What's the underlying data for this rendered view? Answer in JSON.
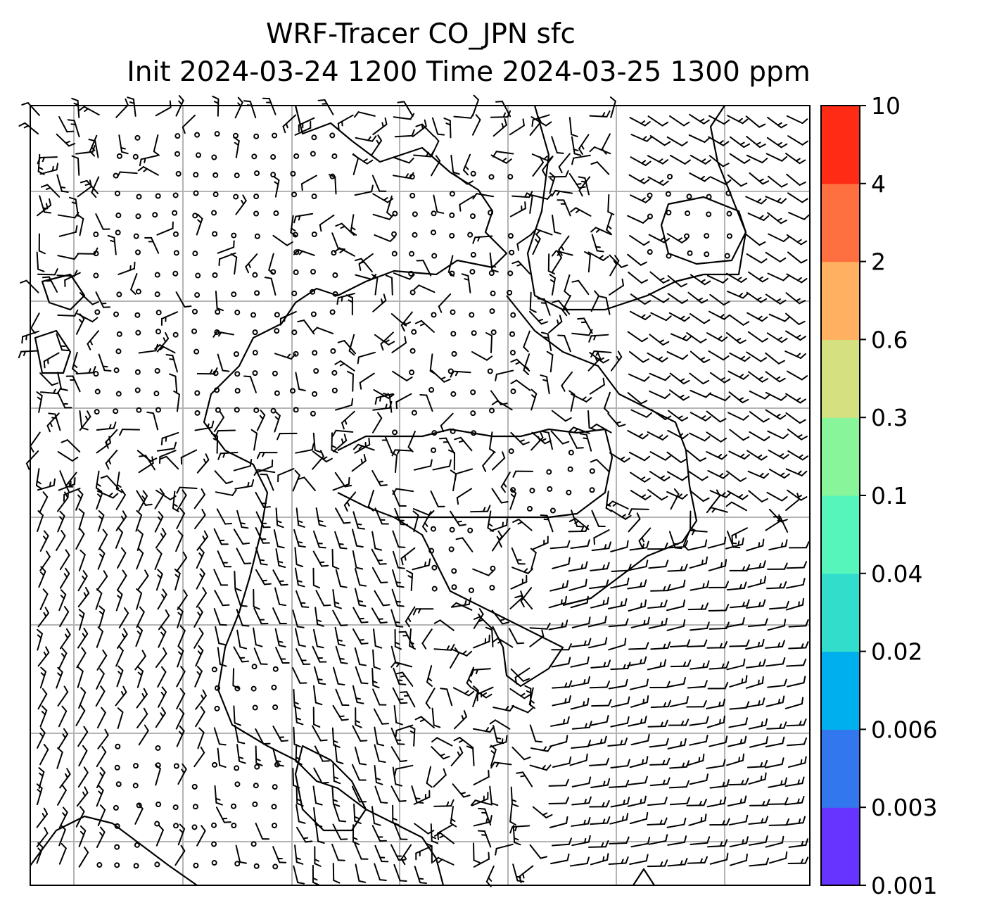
{
  "title": {
    "line1": "WRF-Tracer CO_JPN sfc",
    "line2": "Init 2024-03-24 1200 Time 2024-03-25 1300 ppm"
  },
  "colorbar": {
    "levels": [
      "0.001",
      "0.003",
      "0.006",
      "0.02",
      "0.04",
      "0.1",
      "0.3",
      "0.6",
      "2",
      "4",
      "10"
    ],
    "colors": [
      "#6633ff",
      "#3377ee",
      "#00b0ee",
      "#33ddcc",
      "#55f5bb",
      "#88f59a",
      "#d5e080",
      "#ffb060",
      "#ff7040",
      "#ff2b15"
    ]
  },
  "map": {
    "gridlines": true,
    "grid_color": "#b4b4b4",
    "wind_symbol": "wind-barbs",
    "tracer_shading": "none-visible"
  }
}
